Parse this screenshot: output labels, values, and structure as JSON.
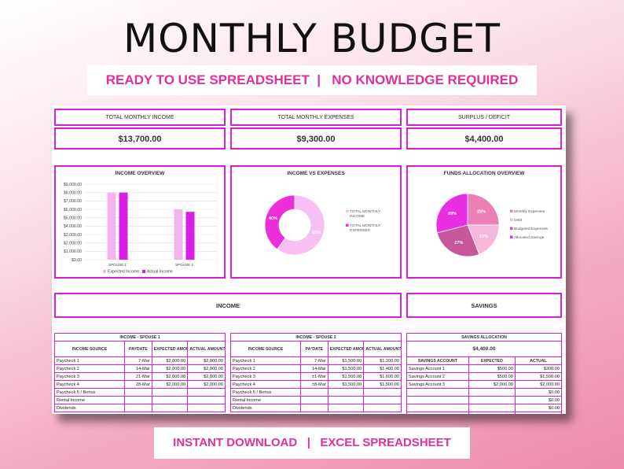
{
  "title": "MONTHLY BUDGET",
  "top_banner": "READY TO USE SPREADSHEET  |   NO KNOWLEDGE REQUIRED",
  "bottom_banner": "INSTANT DOWNLOAD   |   EXCEL SPREADSHEET",
  "accent_color": "#d71ed8",
  "summary": {
    "income_label": "TOTAL MONTHLY INCOME",
    "income_value": "$13,700.00",
    "expenses_label": "TOTAL MONTHLY EXPENSES",
    "expenses_value": "$9,300.00",
    "surplus_label": "SURPLUS / DEFICIT",
    "surplus_value": "$4,400.00"
  },
  "chart_data": [
    {
      "type": "bar",
      "title": "INCOME OVERVIEW",
      "categories": [
        "SPOUSE 1",
        "SPOUSE 2"
      ],
      "series": [
        {
          "name": "Expected Income",
          "values": [
            8000,
            6000
          ],
          "color": "#f1b4ef"
        },
        {
          "name": "Actual Income",
          "values": [
            8000,
            5700
          ],
          "color": "#d91ee6"
        }
      ],
      "yticks": [
        "$0.00",
        "$1,000.00",
        "$2,000.00",
        "$3,000.00",
        "$4,000.00",
        "$5,000.00",
        "$6,000.00",
        "$7,000.00",
        "$8,000.00",
        "$9,000.00"
      ],
      "ylim": [
        0,
        9000
      ],
      "legend": "bottom"
    },
    {
      "type": "pie",
      "title": "INCOME VS EXPENSES",
      "series": [
        {
          "name": "TOTAL MONTHLY INCOME",
          "values": [
            60
          ],
          "label": "60%",
          "color": "#f7bff3"
        },
        {
          "name": "TOTAL MONTHLY EXPENSES",
          "values": [
            40
          ],
          "label": "40%",
          "color": "#ed2fd9"
        }
      ],
      "legend_names": [
        "TOTAL MONTHLY",
        "INCOME",
        "TOTAL MONTHLY",
        "EXPENSES"
      ],
      "legend": "right"
    },
    {
      "type": "pie",
      "title": "FUNDS ALLOCATION OVERVIEW",
      "series": [
        {
          "name": "Monthly Expenses",
          "values": [
            25
          ],
          "label": "25%",
          "color": "#ec7fb3"
        },
        {
          "name": "Debt",
          "values": [
            19
          ],
          "label": "19%",
          "color": "#f5b7dc"
        },
        {
          "name": "Budgeted Expenses",
          "values": [
            27
          ],
          "label": "27%",
          "color": "#c8569b"
        },
        {
          "name": "Allocated Savings",
          "values": [
            29
          ],
          "label": "29%",
          "color": "#ea2ee3"
        }
      ],
      "legend": "right"
    }
  ],
  "sections": {
    "income": "INCOME",
    "savings": "SAVINGS"
  },
  "spouse1": {
    "caption": "INCOME - SPOUSE 1",
    "headers": [
      "INCOME SOURCE",
      "PAYDATE",
      "EXPECTED AMOUNT",
      "ACTUAL AMOUNT"
    ],
    "rows": [
      [
        "Paycheck 1",
        "7-Mar",
        "$2,000.00",
        "$2,000.00"
      ],
      [
        "Paycheck 2",
        "14-Mar",
        "$2,000.00",
        "$2,000.00"
      ],
      [
        "Paycheck 3",
        "21-Mar",
        "$2,000.00",
        "$2,000.00"
      ],
      [
        "Paycheck 4",
        "28-Mar",
        "$2,000.00",
        "$2,000.00"
      ],
      [
        "Paycheck 5  /  Bonus",
        "",
        "",
        ""
      ],
      [
        "Rental Income",
        "",
        "",
        ""
      ],
      [
        "Dividends",
        "",
        "",
        ""
      ]
    ]
  },
  "spouse2": {
    "caption": "INCOME - SPOUSE 2",
    "headers": [
      "INCOME SOURCE",
      "PA°DATE",
      "EXPECTED AMOUNT",
      "ACTUAL AMOUNT"
    ],
    "rows": [
      [
        "Paycheck 1",
        "7-Mar",
        "$1,500.00",
        "$1,200.00"
      ],
      [
        "Paycheck 2",
        "14-Mar",
        "$1,500.00",
        "$1,400.00"
      ],
      [
        "Paycheck 3",
        "±1-Mar",
        "$1,500.00",
        "$1,600.00"
      ],
      [
        "Paycheck 4",
        "±8-Mar",
        "$1,500.00",
        "$1,500.00"
      ],
      [
        "Paycheck 5  /  Bonus",
        "",
        "",
        ""
      ],
      [
        "Rental Income",
        "",
        "",
        ""
      ],
      [
        "Dividends",
        "",
        "",
        ""
      ]
    ]
  },
  "savings": {
    "caption": "SAVINGS ALLOCATION",
    "total": "$4,400.00",
    "headers": [
      "SAVINGS ACCOUNT",
      "EXPECTED",
      "ACTUAL"
    ],
    "rows": [
      [
        "Savings Account 1",
        "$500.00",
        "$300.00"
      ],
      [
        "Savings Account 2",
        "$500.00",
        "$1,500.00"
      ],
      [
        "Savings Account 3",
        "$2,000.00",
        "$2,000.00"
      ],
      [
        "",
        "",
        "$0.00"
      ],
      [
        "",
        "",
        "$0.00"
      ],
      [
        "",
        "",
        "$0.00"
      ],
      [
        "",
        "",
        "$0.00"
      ]
    ]
  }
}
